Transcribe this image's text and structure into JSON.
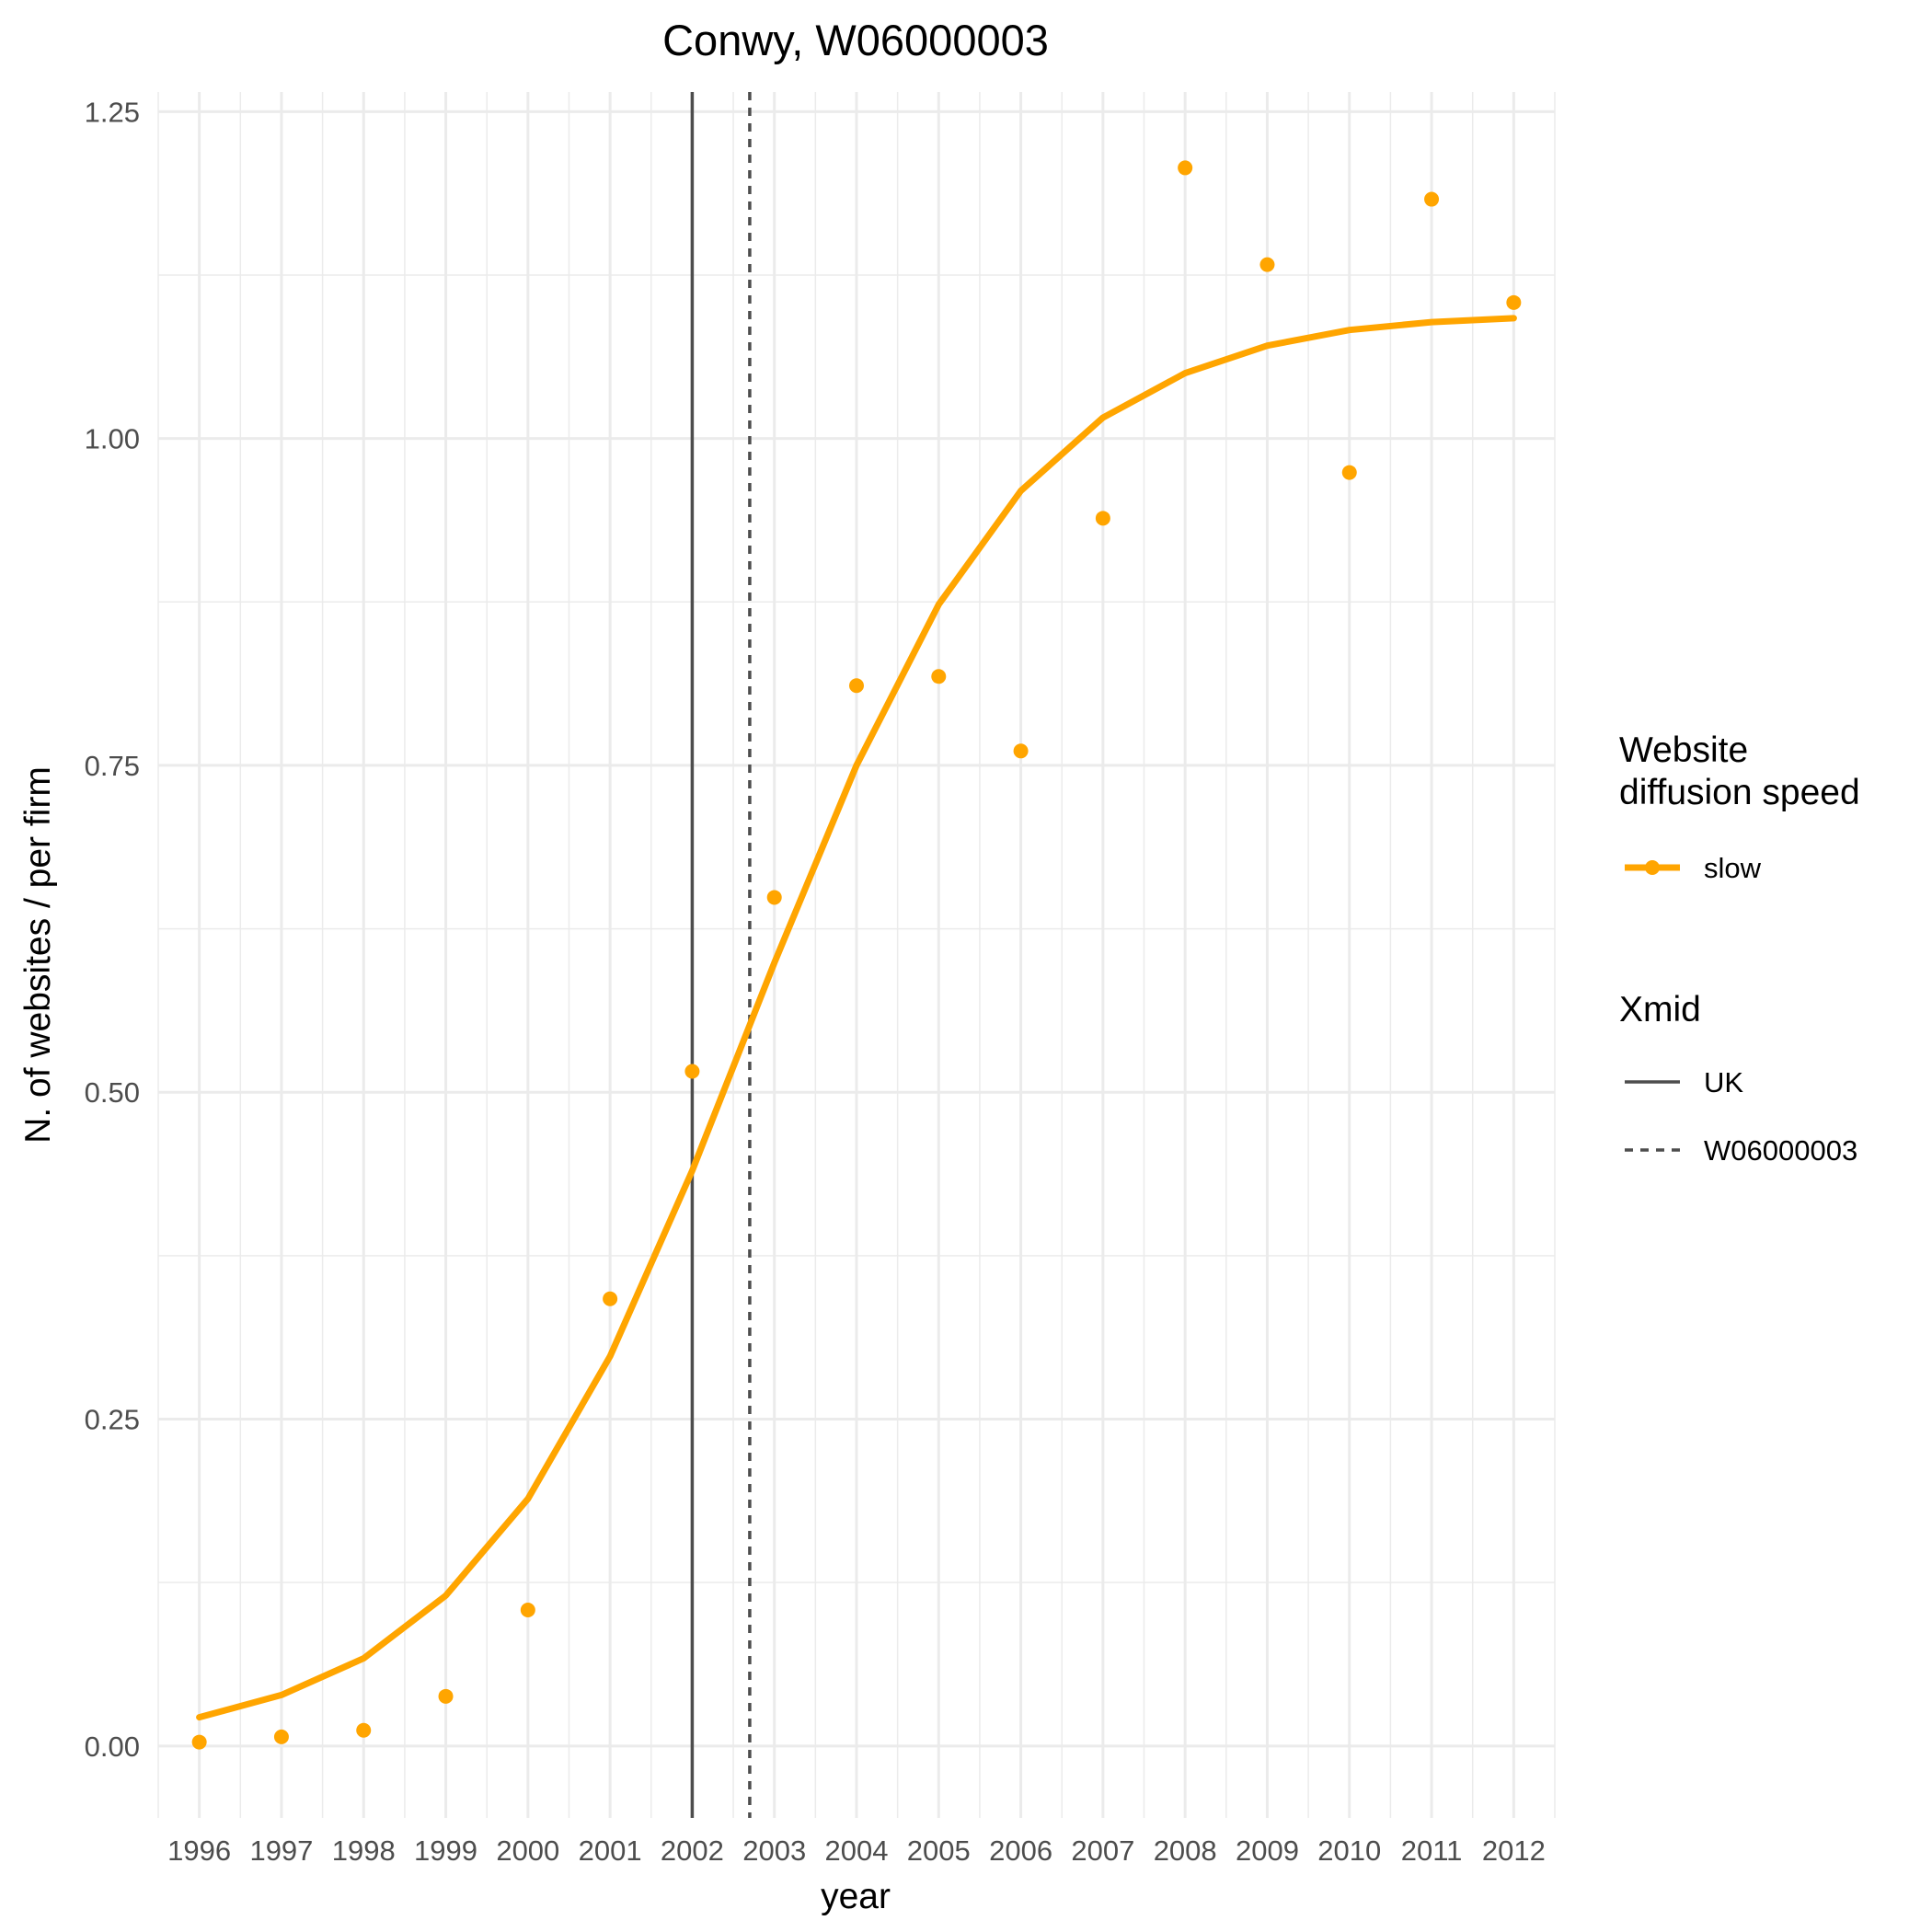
{
  "chart_data": {
    "type": "line",
    "title": "Conwy, W06000003",
    "xlabel": "year",
    "ylabel": "N. of websites / per firm",
    "x": [
      1996,
      1997,
      1998,
      1999,
      2000,
      2001,
      2002,
      2003,
      2004,
      2005,
      2006,
      2007,
      2008,
      2009,
      2010,
      2011,
      2012
    ],
    "x_tick_labels": [
      "1996",
      "1997",
      "1998",
      "1999",
      "2000",
      "2001",
      "2002",
      "2003",
      "2004",
      "2005",
      "2006",
      "2007",
      "2008",
      "2009",
      "2010",
      "2011",
      "2012"
    ],
    "xlim": [
      1995.5,
      2012.5
    ],
    "ylim": [
      -0.055,
      1.265
    ],
    "y_ticks": [
      0,
      0.25,
      0.5,
      0.75,
      1.0,
      1.25
    ],
    "y_tick_labels": [
      "0.00",
      "0.25",
      "0.50",
      "0.75",
      "1.00",
      "1.25"
    ],
    "grid": true,
    "series": [
      {
        "name": "slow",
        "kind": "points",
        "color": "#FFA500",
        "values": [
          0.003,
          0.007,
          0.012,
          0.038,
          0.104,
          0.342,
          0.516,
          0.649,
          0.811,
          0.818,
          0.761,
          0.939,
          1.207,
          1.133,
          0.974,
          1.183,
          1.104
        ]
      },
      {
        "name": "slow",
        "kind": "fitted-curve",
        "color": "#FFA500",
        "values": [
          0.022,
          0.039,
          0.067,
          0.115,
          0.189,
          0.298,
          0.44,
          0.599,
          0.75,
          0.873,
          0.96,
          1.016,
          1.05,
          1.071,
          1.083,
          1.089,
          1.092
        ]
      }
    ],
    "reference_lines": [
      {
        "label": "UK",
        "x": 2002.0,
        "style": "solid",
        "color": "#4d4d4d"
      },
      {
        "label": "W06000003",
        "x": 2002.7,
        "style": "dashed",
        "color": "#4d4d4d"
      }
    ],
    "legend_position": "right",
    "legend": [
      {
        "title": "Website\ndiffusion speed",
        "entries": [
          {
            "label": "slow",
            "color": "#FFA500",
            "style": "line-point"
          }
        ]
      },
      {
        "title": "Xmid",
        "entries": [
          {
            "label": "UK",
            "style": "solid"
          },
          {
            "label": "W06000003",
            "style": "dashed"
          }
        ]
      }
    ]
  }
}
